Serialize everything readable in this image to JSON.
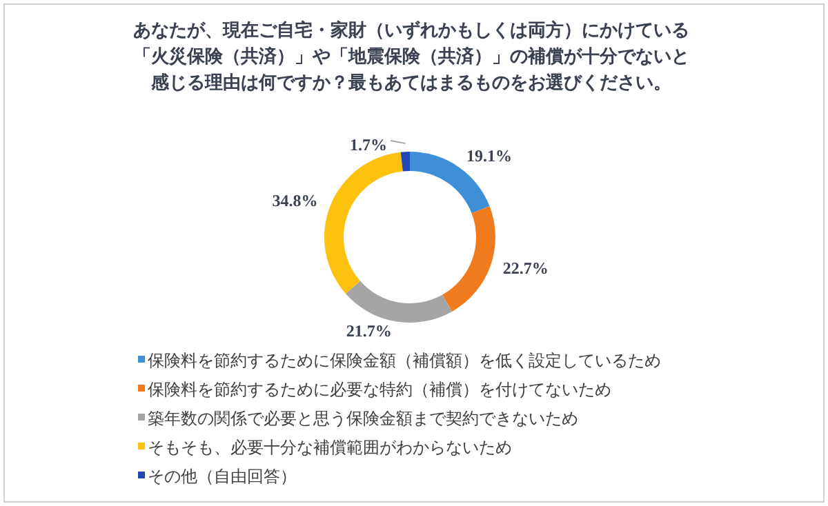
{
  "chart_data": {
    "type": "donut",
    "title": "あなたが、現在ご自宅・家財（いずれかもしくは両方）にかけている「火災保険（共済）」や「地震保険（共済）」の補償が十分でないと感じる理由は何ですか？最もあてはまるものをお選びください。",
    "categories": [
      "保険料を節約するために保険金額（補償額）を低く設定しているため",
      "保険料を節約するために必要な特約（補償）を付けてないため",
      "築年数の関係で必要と思う保険金額まで契約できないため",
      "そもそも、必要十分な補償範囲がわからないため",
      "その他（自由回答）"
    ],
    "values": [
      19.1,
      22.7,
      21.7,
      34.8,
      1.7
    ],
    "colors": [
      "#3f8fd6",
      "#f07b1f",
      "#a5a5a5",
      "#fdc210",
      "#2046b8"
    ],
    "value_labels": [
      "19.1%",
      "22.7%",
      "21.7%",
      "34.8%",
      "1.7%"
    ],
    "legend": "bottom left"
  }
}
